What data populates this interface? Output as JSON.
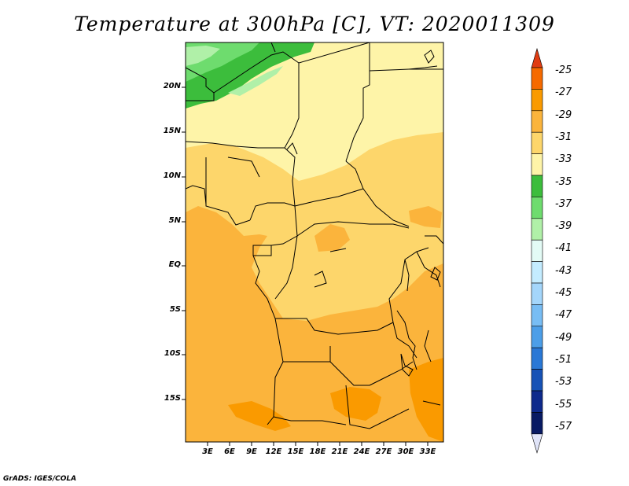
{
  "title": "Temperature at 300hPa [C], VT: 2020011309",
  "footer": "GrADS: IGES/COLA",
  "lat_labels": [
    "20N",
    "15N",
    "10N",
    "5N",
    "EQ",
    "5S",
    "10S",
    "15S"
  ],
  "lon_labels": [
    "3E",
    "6E",
    "9E",
    "12E",
    "15E",
    "18E",
    "21E",
    "24E",
    "27E",
    "30E",
    "33E"
  ],
  "colorbar": {
    "labels": [
      "-25",
      "-27",
      "-29",
      "-31",
      "-33",
      "-35",
      "-37",
      "-39",
      "-41",
      "-43",
      "-45",
      "-47",
      "-49",
      "-51",
      "-53",
      "-55",
      "-57"
    ],
    "colors": [
      "#e03c12",
      "#f56a00",
      "#fa9a00",
      "#fbb43c",
      "#fdd66b",
      "#fef4a8",
      "#3cbd3c",
      "#6edc6e",
      "#b0f0a8",
      "#e3fbf5",
      "#c4ecff",
      "#a4d6fb",
      "#78bdf4",
      "#4c9ee8",
      "#2a78d6",
      "#1652b6",
      "#0e2a8c",
      "#081a63",
      "#e0e4f8"
    ]
  },
  "colors": {
    "land_yellow": "#fef4a8",
    "light_orange": "#fdd66b",
    "orange": "#fbb43c",
    "deep_orange": "#fa9a00",
    "green": "#3cbd3c",
    "mid_green": "#6edc6e",
    "light_green": "#b0f0a8"
  }
}
